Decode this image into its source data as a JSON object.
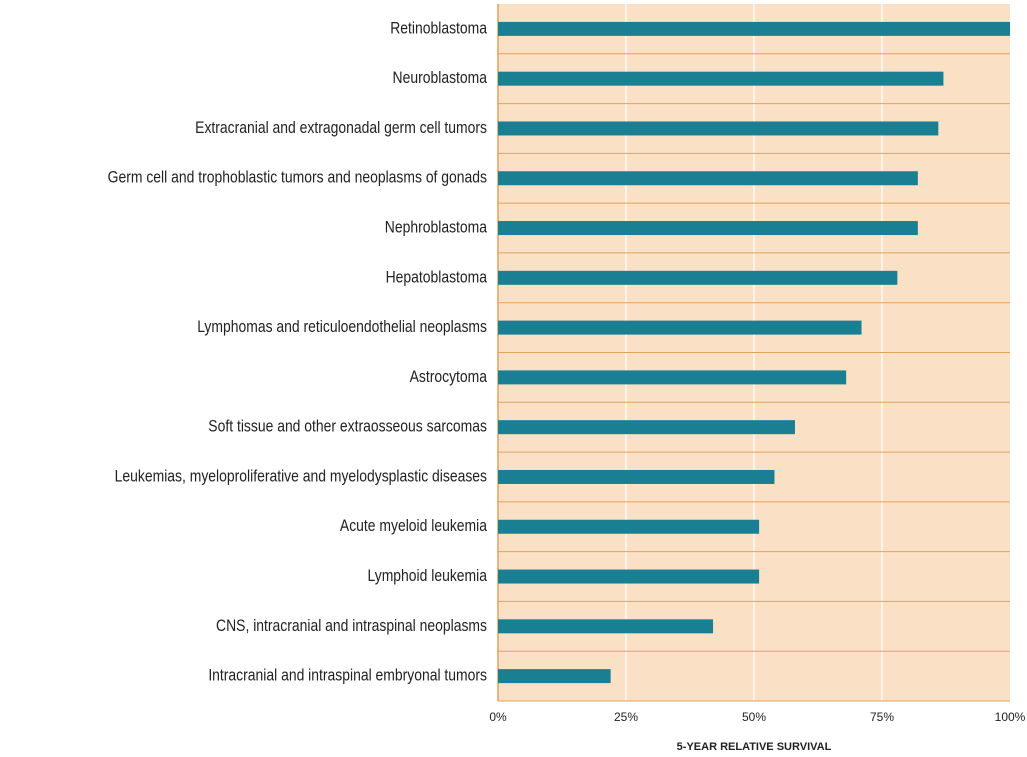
{
  "chart_data": {
    "type": "barh",
    "x_label": "5-YEAR RELATIVE SURVIVAL",
    "categories": [
      "Retinoblastoma",
      "Neuroblastoma",
      "Extracranial and extragonadal germ cell tumors",
      "Germ cell and trophoblastic tumors and neoplasms of gonads",
      "Nephroblastoma",
      "Hepatoblastoma",
      "Lymphomas and reticuloendothelial neoplasms",
      "Astrocytoma",
      "Soft tissue and other extraosseous sarcomas",
      "Leukemias, myeloproliferative and myelodysplastic diseases",
      "Acute myeloid leukemia",
      "Lymphoid leukemia",
      "CNS, intracranial and intraspinal neoplasms",
      "Intracranial and intraspinal embryonal tumors"
    ],
    "values": [
      100,
      87,
      86,
      82,
      82,
      78,
      71,
      68,
      58,
      54,
      51,
      51,
      42,
      22
    ],
    "color": "#1a7f93",
    "background": "#fae1c6",
    "xlim": [
      0,
      100
    ],
    "xticks": [
      {
        "value": 0,
        "label": "0%"
      },
      {
        "value": 25,
        "label": "25%"
      },
      {
        "value": 50,
        "label": "50%"
      },
      {
        "value": 75,
        "label": "75%"
      },
      {
        "value": 100,
        "label": "100%"
      }
    ],
    "grid": true
  }
}
